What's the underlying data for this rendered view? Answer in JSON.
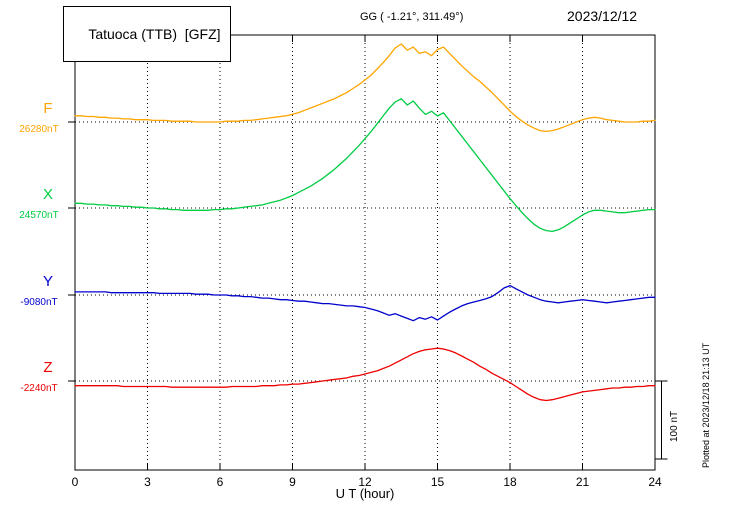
{
  "header": {
    "station": "Tatuoca (TTB)  [GFZ]",
    "coords": "GG ( -1.21°, 311.49°)",
    "date": "2023/12/12"
  },
  "axis": {
    "xlabel": "U T (hour)"
  },
  "scale_bar": {
    "label": "100 nT"
  },
  "footer": {
    "plotted_at": "Plotted at 2023/12/18 21:13 UT"
  },
  "chart_data": {
    "type": "line",
    "title": "Tatuoca (TTB) [GFZ] magnetogram 2023/12/12",
    "xlabel": "U T (hour)",
    "x_range": [
      0,
      24
    ],
    "x_step_hours": 0.25,
    "x_ticks": [
      0,
      3,
      6,
      9,
      12,
      15,
      18,
      21,
      24
    ],
    "y_scale_bar_nT": 100,
    "grid": "dotted-vertical-at-3h-and-dotted-baselines",
    "series": [
      {
        "name": "F",
        "color": "#ffa500",
        "baseline_nT": 26280,
        "baseline_label": "26280nT",
        "offsets_nT": [
          8,
          8,
          7,
          7,
          6,
          6,
          5,
          5,
          4,
          4,
          3,
          3,
          3,
          2,
          2,
          2,
          1,
          1,
          1,
          1,
          0,
          0,
          0,
          0,
          0,
          1,
          1,
          1,
          2,
          2,
          3,
          4,
          5,
          6,
          7,
          8,
          10,
          12,
          15,
          18,
          21,
          24,
          27,
          30,
          34,
          38,
          43,
          48,
          54,
          60,
          68,
          76,
          85,
          95,
          100,
          92,
          96,
          88,
          90,
          85,
          93,
          96,
          88,
          80,
          72,
          65,
          58,
          52,
          45,
          38,
          30,
          22,
          14,
          7,
          1,
          -4,
          -8,
          -11,
          -12,
          -11,
          -9,
          -6,
          -3,
          0,
          3,
          5,
          6,
          5,
          3,
          2,
          1,
          0,
          0,
          0,
          1,
          1,
          2
        ]
      },
      {
        "name": "X",
        "color": "#00cc44",
        "baseline_nT": 24570,
        "baseline_label": "24570nT",
        "offsets_nT": [
          6,
          6,
          5,
          5,
          4,
          4,
          3,
          3,
          2,
          2,
          1,
          1,
          0,
          0,
          -1,
          -1,
          -2,
          -2,
          -3,
          -3,
          -3,
          -3,
          -3,
          -2,
          -2,
          -1,
          -1,
          0,
          1,
          2,
          3,
          4,
          6,
          8,
          10,
          13,
          16,
          20,
          24,
          28,
          33,
          38,
          44,
          50,
          57,
          64,
          72,
          80,
          89,
          98,
          108,
          118,
          128,
          136,
          140,
          132,
          137,
          128,
          120,
          124,
          118,
          122,
          112,
          102,
          92,
          82,
          72,
          62,
          52,
          42,
          32,
          22,
          12,
          3,
          -6,
          -14,
          -21,
          -26,
          -29,
          -30,
          -28,
          -24,
          -19,
          -14,
          -9,
          -5,
          -3,
          -3,
          -4,
          -5,
          -6,
          -6,
          -5,
          -4,
          -3,
          -2,
          -2
        ]
      },
      {
        "name": "Y",
        "color": "#0000cd",
        "baseline_nT": -9080,
        "baseline_label": "-9080nT",
        "offsets_nT": [
          4,
          4,
          4,
          4,
          4,
          4,
          3,
          3,
          3,
          3,
          3,
          3,
          3,
          3,
          2,
          2,
          2,
          2,
          2,
          2,
          1,
          1,
          1,
          0,
          0,
          0,
          -1,
          -1,
          -2,
          -2,
          -3,
          -4,
          -4,
          -5,
          -6,
          -6,
          -7,
          -8,
          -8,
          -9,
          -10,
          -11,
          -11,
          -12,
          -13,
          -14,
          -14,
          -15,
          -16,
          -18,
          -20,
          -23,
          -26,
          -24,
          -27,
          -30,
          -33,
          -29,
          -31,
          -28,
          -32,
          -27,
          -22,
          -18,
          -14,
          -11,
          -9,
          -7,
          -5,
          -2,
          3,
          9,
          12,
          8,
          4,
          0,
          -3,
          -6,
          -8,
          -9,
          -10,
          -9,
          -8,
          -7,
          -6,
          -7,
          -8,
          -9,
          -10,
          -9,
          -8,
          -7,
          -6,
          -5,
          -4,
          -3,
          -3
        ]
      },
      {
        "name": "Z",
        "color": "#ee0000",
        "baseline_nT": -2240,
        "baseline_label": "-2240nT",
        "offsets_nT": [
          -6,
          -6,
          -6,
          -6,
          -6,
          -6,
          -6,
          -6,
          -7,
          -7,
          -7,
          -7,
          -7,
          -7,
          -7,
          -7,
          -8,
          -8,
          -8,
          -8,
          -8,
          -8,
          -8,
          -8,
          -8,
          -8,
          -7,
          -7,
          -7,
          -7,
          -7,
          -6,
          -6,
          -6,
          -5,
          -5,
          -4,
          -4,
          -3,
          -2,
          -1,
          0,
          1,
          2,
          3,
          4,
          6,
          7,
          9,
          11,
          13,
          16,
          19,
          23,
          27,
          31,
          35,
          38,
          40,
          41,
          42,
          41,
          39,
          36,
          32,
          28,
          24,
          19,
          15,
          10,
          6,
          2,
          -2,
          -7,
          -12,
          -17,
          -21,
          -24,
          -25,
          -24,
          -22,
          -20,
          -18,
          -16,
          -14,
          -13,
          -12,
          -11,
          -10,
          -9,
          -9,
          -8,
          -8,
          -7,
          -7,
          -6,
          -6
        ]
      }
    ]
  }
}
